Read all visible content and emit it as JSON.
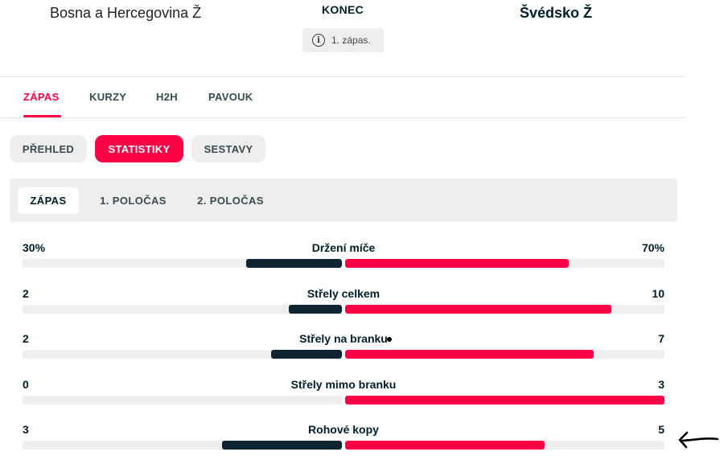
{
  "header": {
    "home_team": "Bosna a Hercegovina Ž",
    "status": "KONEC",
    "round": "1. zápas.",
    "away_team": "Švédsko Ž"
  },
  "main_tabs": [
    "ZÁPAS",
    "KURZY",
    "H2H",
    "PAVOUK"
  ],
  "active_main_tab": "ZÁPAS",
  "sub_tabs": [
    "PŘEHLED",
    "STATISTIKY",
    "SESTAVY"
  ],
  "active_sub_tab": "STATISTIKY",
  "period_tabs": [
    "ZÁPAS",
    "1. POLOČAS",
    "2. POLOČAS"
  ],
  "active_period_tab": "ZÁPAS",
  "stats": [
    {
      "name": "Držení míče",
      "home": "30%",
      "away": "70%",
      "home_share": 0.3,
      "away_share": 0.7
    },
    {
      "name": "Střely celkem",
      "home": "2",
      "away": "10",
      "home_share": 0.1667,
      "away_share": 0.8333
    },
    {
      "name": "Střely na branku",
      "home": "2",
      "away": "7",
      "home_share": 0.2222,
      "away_share": 0.7778
    },
    {
      "name": "Střely mimo branku",
      "home": "0",
      "away": "3",
      "home_share": 0.0,
      "away_share": 1.0
    },
    {
      "name": "Rohové kopy",
      "home": "3",
      "away": "5",
      "home_share": 0.375,
      "away_share": 0.625
    }
  ],
  "colors": {
    "accent": "#ff0046",
    "home_bar": "#0f2431",
    "track": "#eeeeee",
    "text": "#001e28"
  }
}
